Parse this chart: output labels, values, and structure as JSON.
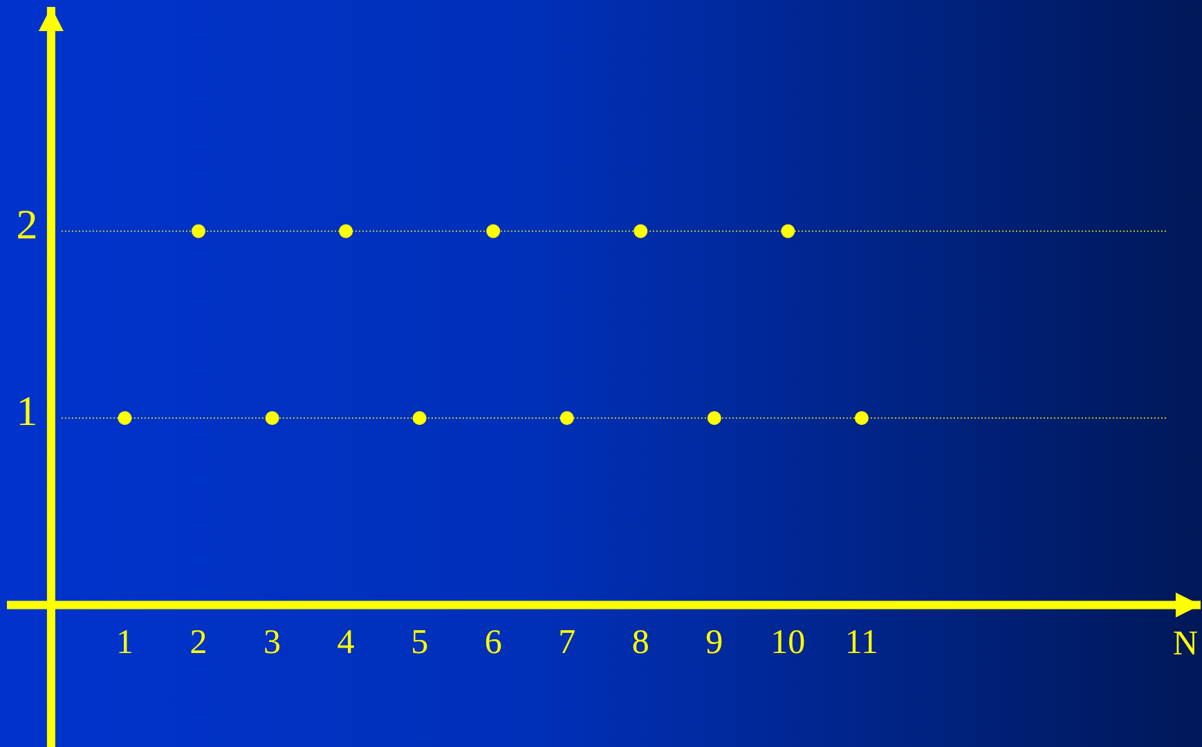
{
  "chart_data": {
    "type": "scatter",
    "xlabel": "N",
    "x": [
      1,
      2,
      3,
      4,
      5,
      6,
      7,
      8,
      9,
      10,
      11
    ],
    "series": [
      {
        "color": "#ffff00",
        "values": [
          1,
          2,
          1,
          2,
          1,
          2,
          1,
          2,
          1,
          2,
          1
        ]
      }
    ],
    "xlim": [
      -0.6,
      15.6
    ],
    "ylim": [
      -0.76,
      3.2
    ],
    "xticks": [
      1,
      2,
      3,
      4,
      5,
      6,
      7,
      8,
      9,
      10,
      11
    ],
    "yticks": [
      1,
      2
    ],
    "grid": "y",
    "marker": "circle",
    "line_style": "dotted"
  }
}
